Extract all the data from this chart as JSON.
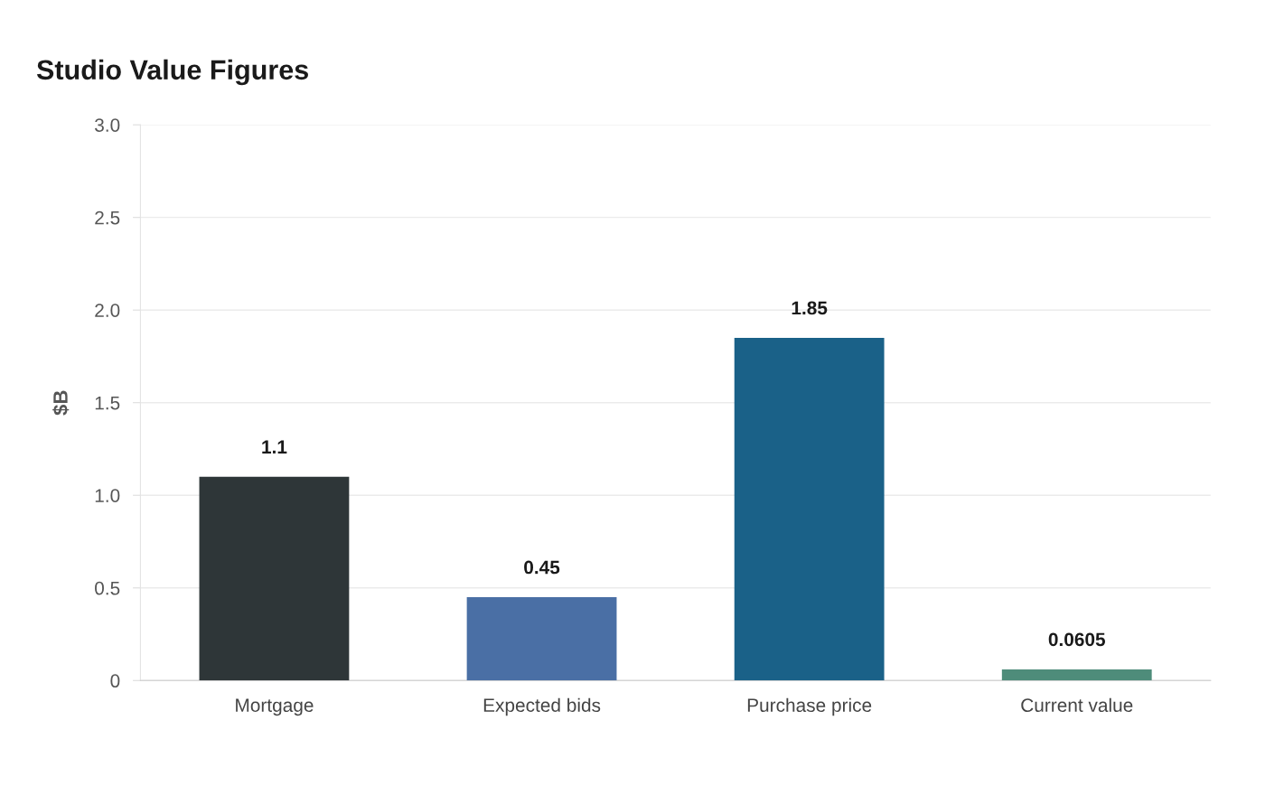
{
  "chart_data": {
    "type": "bar",
    "title": "Studio Value Figures",
    "ylabel": "$B",
    "categories": [
      "Mortgage",
      "Expected bids",
      "Purchase price",
      "Current value"
    ],
    "values": [
      1.1,
      0.45,
      1.85,
      0.0605
    ],
    "colors": [
      "#2e3638",
      "#4a6fa5",
      "#1a6188",
      "#4e8c7a"
    ],
    "ylim": [
      0,
      3
    ],
    "yticks": [
      0,
      {
        "value": 0.5,
        "label": "0.5"
      },
      {
        "value": 1,
        "label": "1.0"
      },
      {
        "value": 1.5,
        "label": "1.5"
      },
      {
        "value": 2,
        "label": "2.0"
      },
      {
        "value": 2.5,
        "label": "2.5"
      },
      {
        "value": 3,
        "label": "3.0"
      }
    ],
    "grid": "y",
    "data_labels": true,
    "legend": false
  }
}
